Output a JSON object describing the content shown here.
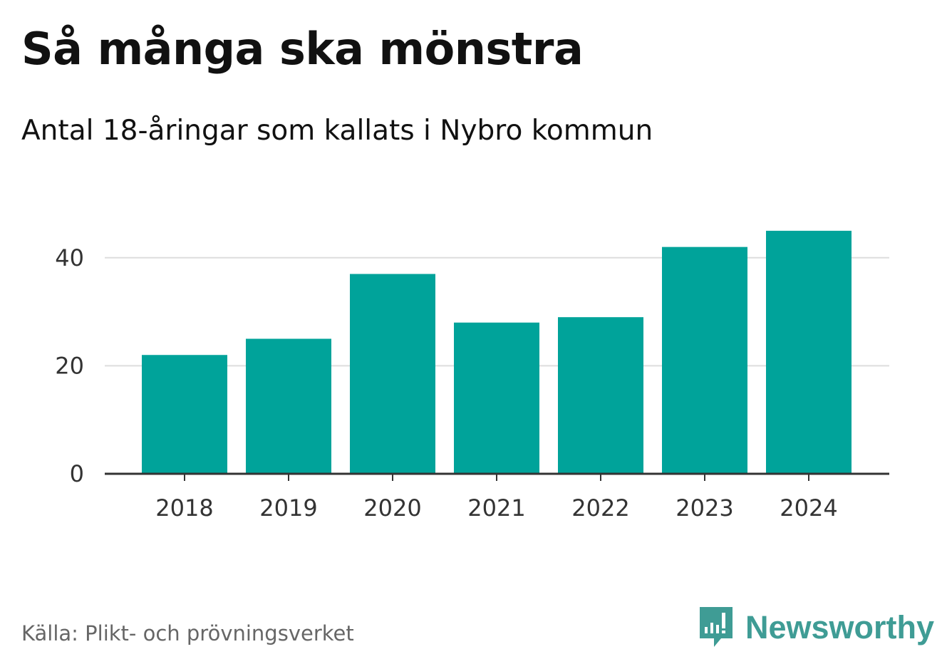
{
  "title": "Så många ska mönstra",
  "subtitle": "Antal 18-åringar som kallats i Nybro kommun",
  "source": "Källa: Plikt- och prövningsverket",
  "brand": {
    "name": "Newsworthy",
    "icon": "bar-chart-speech-bubble-icon",
    "color": "#3f9c95"
  },
  "colors": {
    "bar": "#00a39a",
    "grid": "#dddddd",
    "axis": "#333333"
  },
  "chart_data": {
    "type": "bar",
    "title": "Så många ska mönstra",
    "subtitle": "Antal 18-åringar som kallats i Nybro kommun",
    "categories": [
      "2018",
      "2019",
      "2020",
      "2021",
      "2022",
      "2023",
      "2024"
    ],
    "values": [
      22,
      25,
      37,
      28,
      29,
      42,
      45
    ],
    "xlabel": "",
    "ylabel": "",
    "ylim": [
      0,
      45
    ],
    "yticks": [
      0,
      20,
      40
    ],
    "ytick_labels": [
      "0",
      "20",
      "40"
    ],
    "grid": true,
    "legend": "none"
  }
}
